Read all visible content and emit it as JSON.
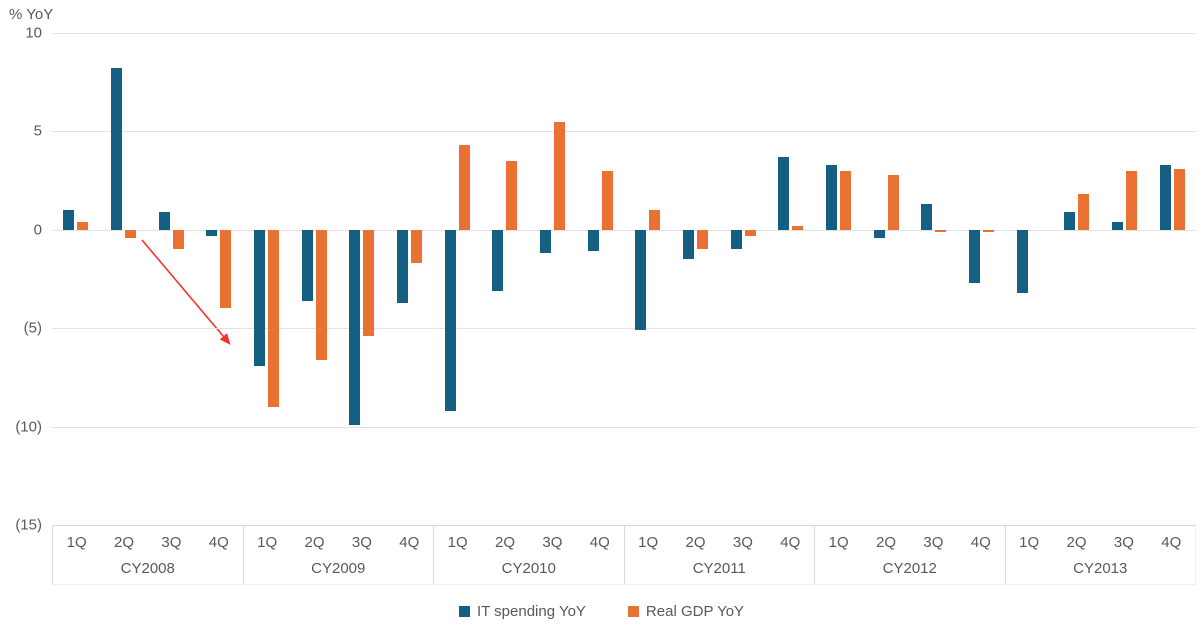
{
  "chart_data": {
    "type": "bar",
    "title": "% YoY",
    "ylim": [
      -15,
      10
    ],
    "grid": true,
    "legend_position": "bottom-center",
    "y_ticks": [
      {
        "value": 10,
        "label": "10"
      },
      {
        "value": 5,
        "label": "5"
      },
      {
        "value": 0,
        "label": "0"
      },
      {
        "value": -5,
        "label": "(5)"
      },
      {
        "value": -10,
        "label": "(10)"
      },
      {
        "value": -15,
        "label": "(15)"
      }
    ],
    "quarter_labels": [
      "1Q",
      "2Q",
      "3Q",
      "4Q"
    ],
    "series": [
      {
        "name": "IT spending YoY",
        "key": "it_spending",
        "color": "#156082"
      },
      {
        "name": "Real GDP YoY",
        "key": "real_gdp",
        "color": "#E97132"
      }
    ],
    "groups": [
      {
        "year": "CY2008",
        "it_spending": [
          1.0,
          8.2,
          0.9,
          -0.3
        ],
        "real_gdp": [
          0.4,
          -0.4,
          -1.0,
          -4.0
        ]
      },
      {
        "year": "CY2009",
        "it_spending": [
          -6.9,
          -3.6,
          -9.9,
          -3.7
        ],
        "real_gdp": [
          -9.0,
          -6.6,
          -5.4,
          -1.7
        ]
      },
      {
        "year": "CY2010",
        "it_spending": [
          -9.2,
          -3.1,
          -1.2,
          -1.1
        ],
        "real_gdp": [
          4.3,
          3.5,
          5.5,
          3.0
        ]
      },
      {
        "year": "CY2011",
        "it_spending": [
          -5.1,
          -1.5,
          -1.0,
          3.7
        ],
        "real_gdp": [
          1.0,
          -1.0,
          -0.3,
          0.2
        ]
      },
      {
        "year": "CY2012",
        "it_spending": [
          3.3,
          -0.4,
          1.3,
          -2.7
        ],
        "real_gdp": [
          3.0,
          2.8,
          -0.1,
          -0.1
        ]
      },
      {
        "year": "CY2013",
        "it_spending": [
          -3.2,
          0.9,
          0.4,
          3.3
        ],
        "real_gdp": [
          0.0,
          1.8,
          3.0,
          3.1
        ]
      }
    ],
    "annotation_arrow": {
      "color": "#F83030",
      "x1": 142,
      "y1": 240,
      "x2": 229,
      "y2": 343
    },
    "colors": {
      "grid": "#E2E2E2",
      "axis_line": "#D9D9D9",
      "text": "#595959",
      "background": "#FFFFFF"
    }
  }
}
